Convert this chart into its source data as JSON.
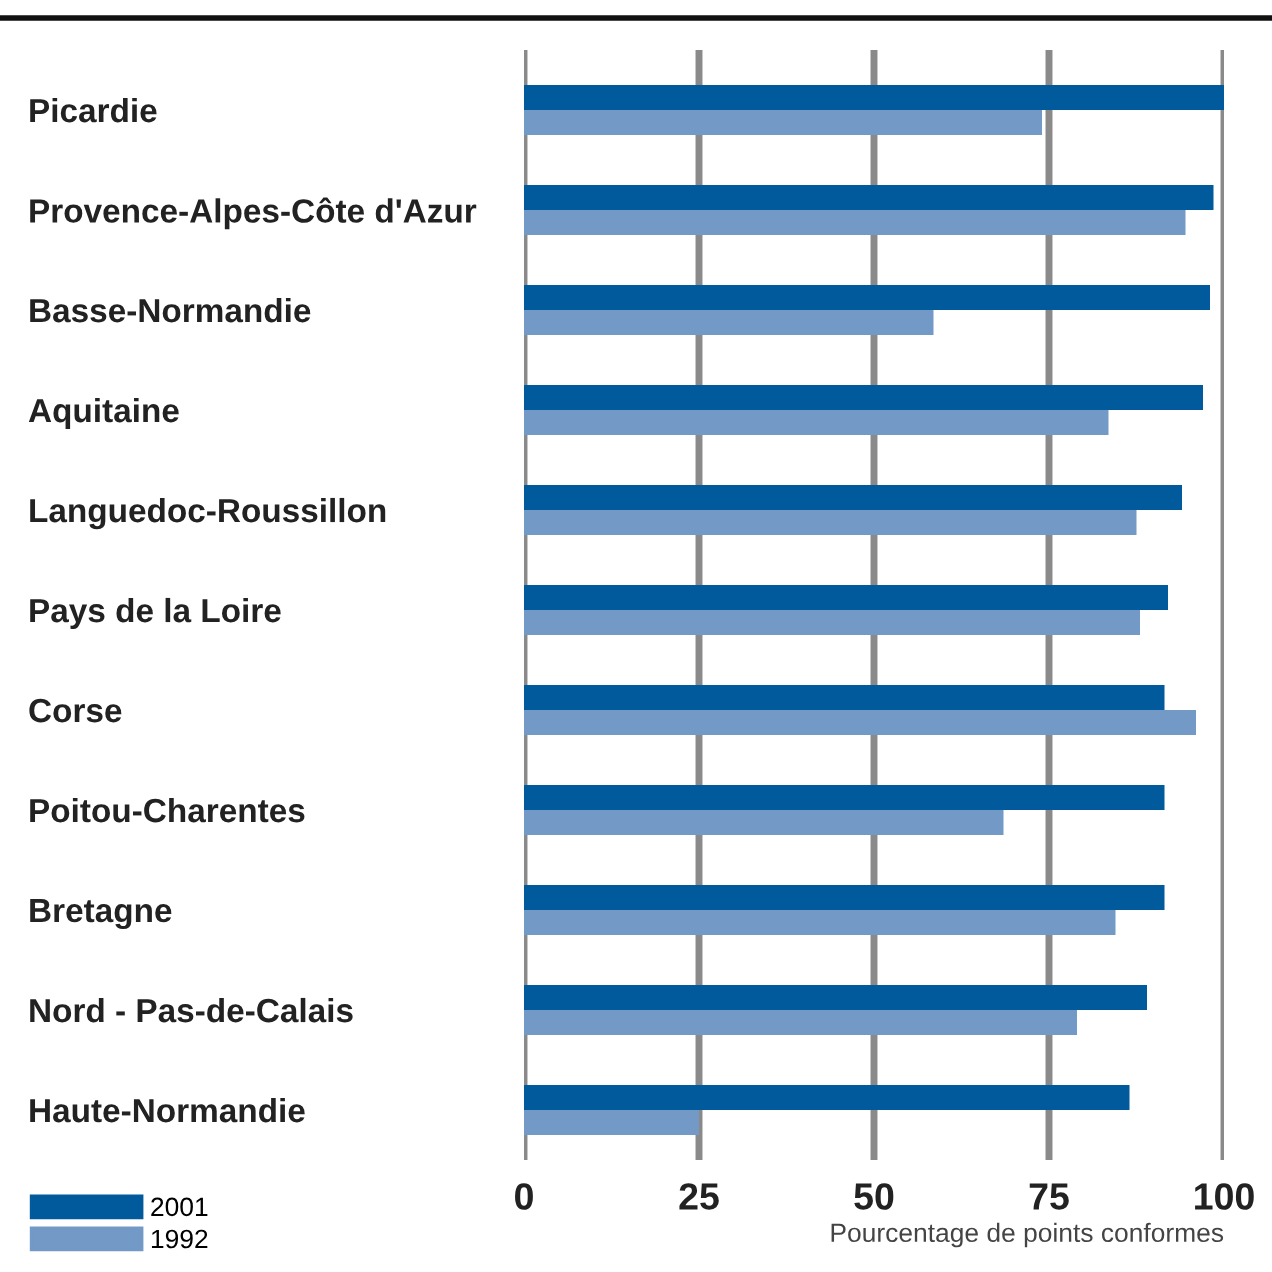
{
  "chart_data": {
    "type": "bar",
    "orientation": "horizontal",
    "categories": [
      "Picardie",
      "Provence-Alpes-Côte d'Azur",
      "Basse-Normandie",
      "Aquitaine",
      "Languedoc-Roussillon",
      "Pays de la Loire",
      "Corse",
      "Poitou-Charentes",
      "Bretagne",
      "Nord - Pas-de-Calais",
      "Haute-Normandie"
    ],
    "series": [
      {
        "name": "2001",
        "color": "#005a9c",
        "values": [
          100,
          98.5,
          98,
          97,
          94,
          92,
          91.5,
          91.5,
          91.5,
          89,
          86.5
        ]
      },
      {
        "name": "1992",
        "color": "#7399c6",
        "values": [
          74,
          94.5,
          58.5,
          83.5,
          87.5,
          88,
          96,
          68.5,
          84.5,
          79,
          25
        ]
      }
    ],
    "xlim": [
      0,
      100
    ],
    "xticks": [
      0,
      25,
      50,
      75,
      100
    ],
    "xlabel": "Pourcentage de points conformes",
    "grid": "x",
    "legend": "bottom left"
  }
}
